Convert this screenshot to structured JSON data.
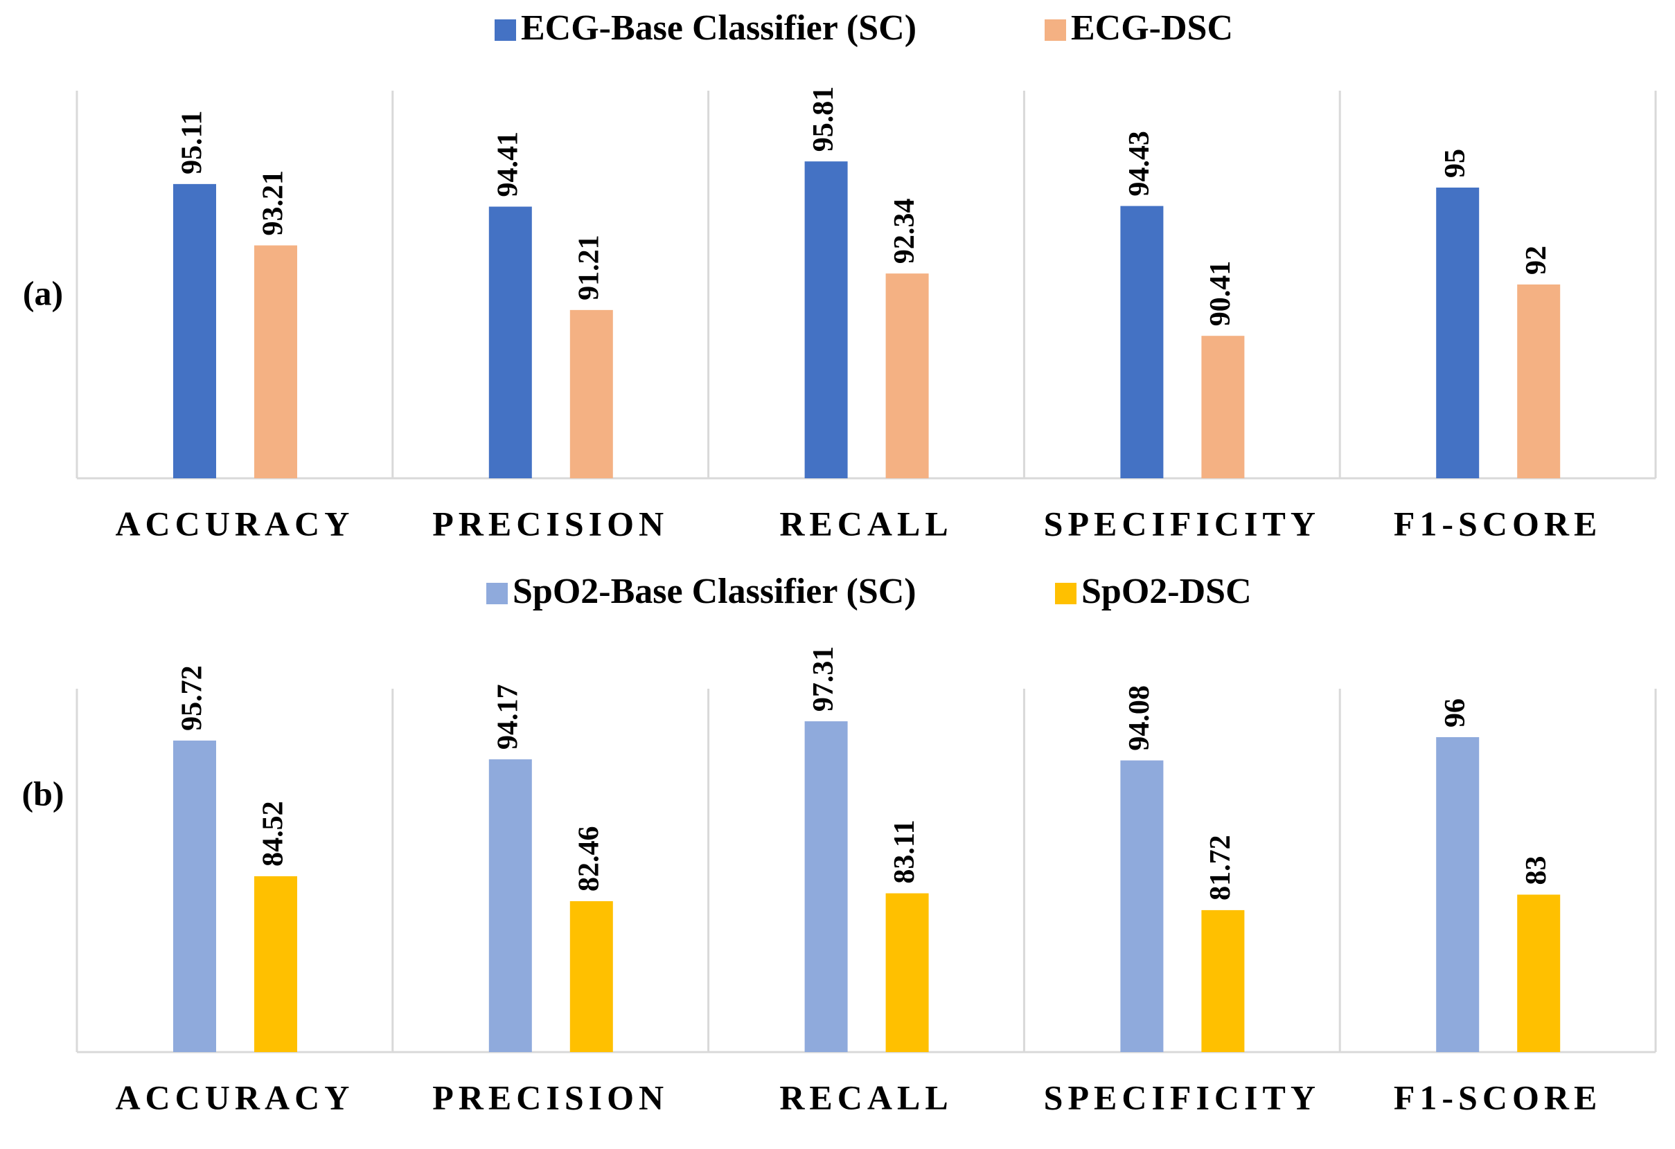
{
  "chart_data": [
    {
      "type": "bar",
      "panel_label": "(a)",
      "categories": [
        "ACCURACY",
        "PRECISION",
        "RECALL",
        "SPECIFICITY",
        "F1-SCORE"
      ],
      "series": [
        {
          "name": "ECG-Base Classifier (SC)",
          "color": "#4472c4",
          "values": [
            95.11,
            94.41,
            95.81,
            94.43,
            95
          ]
        },
        {
          "name": "ECG-DSC",
          "color": "#f4b183",
          "values": [
            93.21,
            91.21,
            92.34,
            90.41,
            92
          ]
        }
      ],
      "ylim": [
        86,
        98
      ]
    },
    {
      "type": "bar",
      "panel_label": "(b)",
      "categories": [
        "ACCURACY",
        "PRECISION",
        "RECALL",
        "SPECIFICITY",
        "F1-SCORE"
      ],
      "series": [
        {
          "name": "SpO2-Base Classifier (SC)",
          "color": "#8faadc",
          "values": [
            95.72,
            94.17,
            97.31,
            94.08,
            96
          ]
        },
        {
          "name": "SpO2-DSC",
          "color": "#ffc000",
          "values": [
            84.52,
            82.46,
            83.11,
            81.72,
            83
          ]
        }
      ],
      "ylim": [
        70,
        100
      ]
    }
  ]
}
